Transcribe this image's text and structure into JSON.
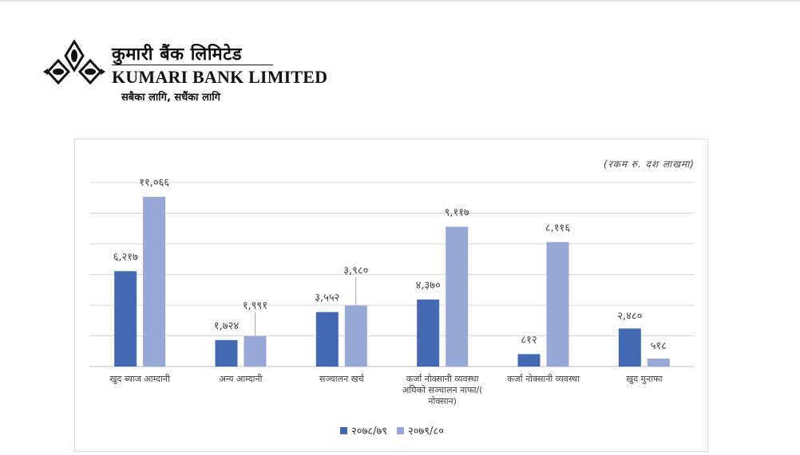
{
  "logo": {
    "name_np": "कुमारी बैंक लिमिटेड",
    "name_en": "KUMARI BANK LIMITED",
    "tagline": "सबैका लागि, सधैंका लागि",
    "colors": {
      "mark": "#111111"
    }
  },
  "chart_data": {
    "type": "bar",
    "unit_note": "(रकम रु. दश लाखमा)",
    "categories": [
      [
        "खुद ब्याज आम्दानी"
      ],
      [
        "अन्य आम्दानी"
      ],
      [
        "सञ्चालन खर्च"
      ],
      [
        "कर्जा नोक्सानी व्यवस्था",
        "अघिको सञ्चालन नाफा/(",
        "नोक्सान)"
      ],
      [
        "कर्जा नोक्सानी व्यवस्था"
      ],
      [
        "खुद मुनाफा"
      ]
    ],
    "series": [
      {
        "name": "२०७८/७९",
        "color": "#4568b3",
        "values": [
          6217,
          1724,
          3552,
          4370,
          812,
          2480
        ],
        "labels": [
          "६,२१७",
          "१,७२४",
          "३,५५२",
          "४,३७०",
          "८१२",
          "२,४८०"
        ]
      },
      {
        "name": "२०७९/८०",
        "color": "#97a8d7",
        "values": [
          11066,
          1991,
          3980,
          9117,
          8116,
          518
        ],
        "labels": [
          "११,०६६",
          "१,९९१",
          "३,९८०",
          "९,११७",
          "८,११६",
          "५१८"
        ]
      }
    ],
    "ylim": [
      0,
      12000
    ],
    "gridlines": true,
    "legend_position": "bottom"
  }
}
